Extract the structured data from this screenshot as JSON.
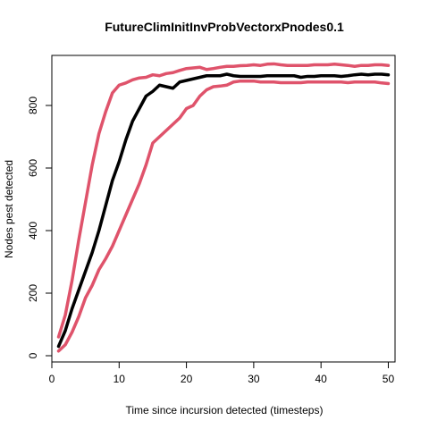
{
  "chart_data": {
    "type": "line",
    "title": "FutureClimInitInvProbVectorxPnodes0.1",
    "xlabel": "Time since incursion detected (timesteps)",
    "ylabel": "Nodes pest detected",
    "xlim": [
      0,
      51
    ],
    "ylim": [
      -20,
      960
    ],
    "xticks": [
      0,
      10,
      20,
      30,
      40,
      50
    ],
    "yticks": [
      0,
      200,
      400,
      600,
      800
    ],
    "grid": false,
    "legend": "none",
    "x": [
      1,
      2,
      3,
      4,
      5,
      6,
      7,
      8,
      9,
      10,
      11,
      12,
      13,
      14,
      15,
      16,
      17,
      18,
      19,
      20,
      21,
      22,
      23,
      24,
      25,
      26,
      27,
      28,
      29,
      30,
      31,
      32,
      33,
      34,
      35,
      36,
      37,
      38,
      39,
      40,
      41,
      42,
      43,
      44,
      45,
      46,
      47,
      48,
      49,
      50
    ],
    "series": [
      {
        "color": "#DF536B",
        "values": [
          60,
          130,
          240,
          370,
          490,
          610,
          710,
          780,
          840,
          865,
          872,
          882,
          888,
          890,
          898,
          895,
          902,
          905,
          912,
          918,
          920,
          922,
          915,
          918,
          922,
          925,
          925,
          927,
          928,
          930,
          928,
          932,
          933,
          930,
          928,
          928,
          928,
          928,
          930,
          930,
          930,
          932,
          930,
          928,
          925,
          928,
          928,
          930,
          930,
          928
        ]
      },
      {
        "color": "#000000",
        "values": [
          30,
          80,
          150,
          210,
          270,
          330,
          400,
          480,
          560,
          620,
          690,
          750,
          790,
          830,
          845,
          865,
          860,
          855,
          875,
          880,
          885,
          890,
          895,
          895,
          895,
          900,
          895,
          893,
          893,
          893,
          893,
          895,
          895,
          895,
          895,
          895,
          890,
          893,
          893,
          895,
          895,
          895,
          893,
          895,
          898,
          900,
          898,
          900,
          900,
          898
        ]
      },
      {
        "color": "#DF536B",
        "values": [
          15,
          35,
          75,
          125,
          185,
          225,
          275,
          310,
          350,
          400,
          450,
          500,
          550,
          610,
          680,
          700,
          720,
          740,
          760,
          790,
          800,
          830,
          850,
          860,
          862,
          865,
          875,
          878,
          878,
          878,
          875,
          875,
          875,
          873,
          873,
          873,
          873,
          875,
          875,
          875,
          875,
          875,
          875,
          873,
          875,
          875,
          875,
          875,
          872,
          870
        ]
      }
    ]
  }
}
